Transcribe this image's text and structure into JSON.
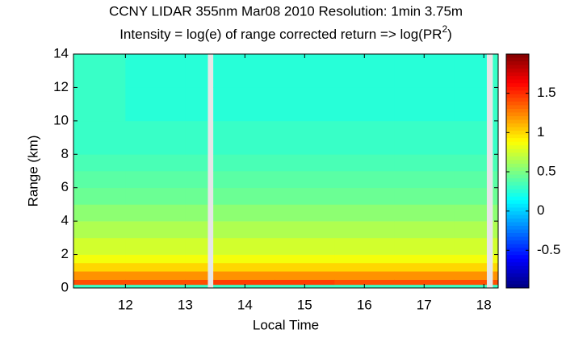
{
  "chart_data": {
    "type": "heatmap",
    "title": "CCNY LIDAR 355nm Mar08 2010 Resolution: 1min 3.75m",
    "subtitle": [
      "Intensity = log(e) of range corrected return => log(PR",
      "2",
      ")"
    ],
    "xlabel": "Local Time",
    "ylabel": "Range (km)",
    "x_edges": [
      11.13,
      12.0,
      13.0,
      13.38,
      13.47,
      14.5,
      15.5,
      16.5,
      17.5,
      18.05,
      18.15,
      18.24
    ],
    "y_edges": [
      0,
      0.2,
      0.5,
      1,
      1.5,
      2,
      3,
      4,
      5,
      6,
      7,
      8,
      10,
      12,
      14
    ],
    "z": [
      [
        0.3,
        1.4,
        1.2,
        1.0,
        0.85,
        0.75,
        0.65,
        0.55,
        0.45,
        0.4,
        0.35,
        0.3,
        0.3,
        0.3
      ],
      [
        0.3,
        1.4,
        1.2,
        1.0,
        0.85,
        0.75,
        0.65,
        0.55,
        0.45,
        0.4,
        0.35,
        0.3,
        0.25,
        0.25
      ],
      [
        0.3,
        1.4,
        1.2,
        1.0,
        0.85,
        0.75,
        0.65,
        0.55,
        0.45,
        0.4,
        0.35,
        0.3,
        0.25,
        0.25
      ],
      null,
      [
        0.3,
        1.45,
        1.2,
        1.0,
        0.85,
        0.75,
        0.65,
        0.55,
        0.45,
        0.4,
        0.35,
        0.3,
        0.25,
        0.25
      ],
      [
        0.3,
        1.45,
        1.2,
        1.0,
        0.85,
        0.75,
        0.65,
        0.55,
        0.45,
        0.4,
        0.35,
        0.3,
        0.25,
        0.25
      ],
      [
        0.3,
        1.4,
        1.2,
        1.0,
        0.85,
        0.75,
        0.65,
        0.55,
        0.45,
        0.4,
        0.35,
        0.3,
        0.25,
        0.25
      ],
      [
        0.3,
        1.4,
        1.2,
        1.0,
        0.85,
        0.75,
        0.65,
        0.55,
        0.45,
        0.4,
        0.35,
        0.3,
        0.25,
        0.25
      ],
      [
        0.3,
        1.4,
        1.2,
        1.0,
        0.85,
        0.75,
        0.65,
        0.55,
        0.45,
        0.4,
        0.35,
        0.3,
        0.25,
        0.25
      ],
      null,
      [
        0.3,
        1.4,
        1.2,
        1.0,
        0.85,
        0.75,
        0.65,
        0.55,
        0.45,
        0.4,
        0.35,
        0.3,
        0.3,
        0.3
      ]
    ],
    "xlim": [
      11.13,
      18.24
    ],
    "xticks": [
      12,
      13,
      14,
      15,
      16,
      17,
      18
    ],
    "ylim": [
      0,
      14
    ],
    "yticks": [
      0,
      2,
      4,
      6,
      8,
      10,
      12,
      14
    ],
    "clim": [
      -0.98,
      2.0
    ],
    "cticks": [
      -0.5,
      0,
      0.5,
      1,
      1.5
    ],
    "colormap": "jet"
  }
}
